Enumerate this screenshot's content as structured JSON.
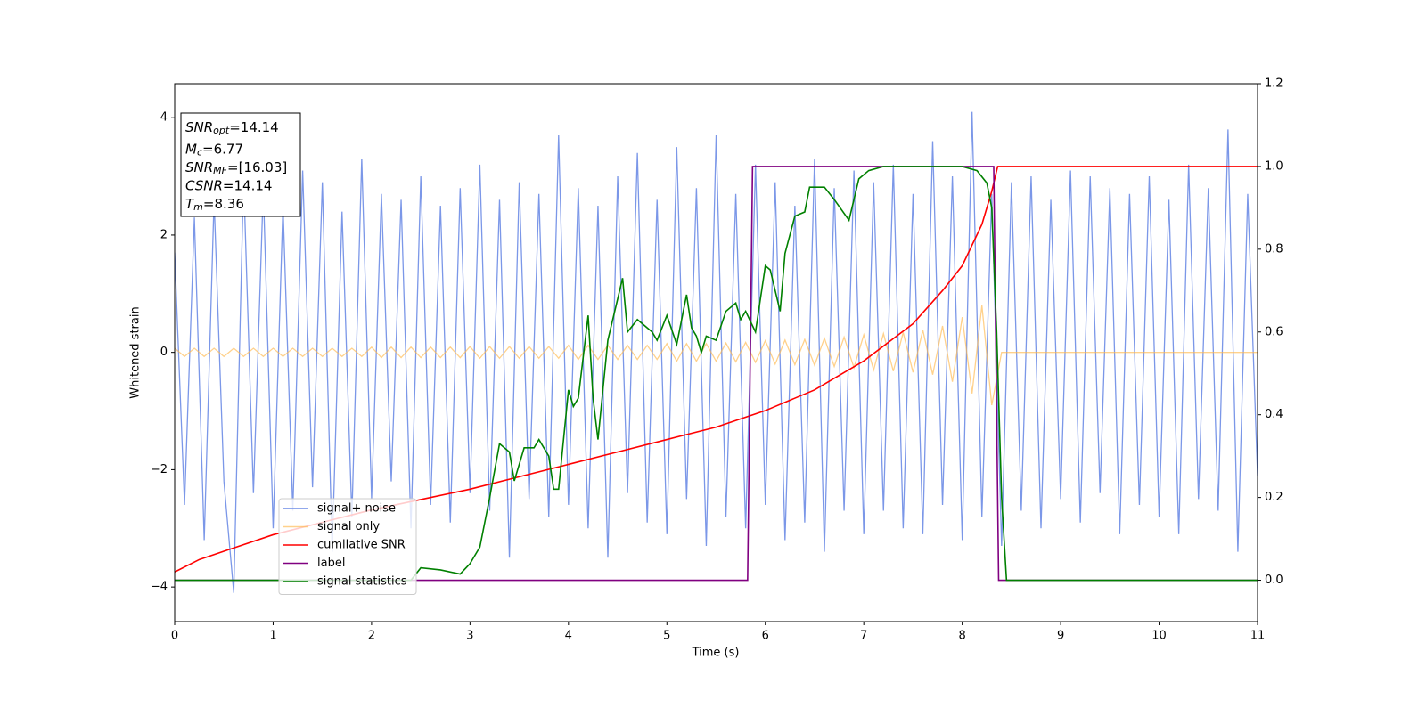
{
  "chart_data": {
    "type": "line",
    "xlabel": "Time (s)",
    "ylabel": "Whitened strain",
    "xlim": [
      0,
      11
    ],
    "ylim": [
      -4.59,
      4.58
    ],
    "y2lim": [
      -0.1,
      1.2
    ],
    "xticks": [
      0,
      1,
      2,
      3,
      4,
      5,
      6,
      7,
      8,
      9,
      10,
      11
    ],
    "yticks": [
      {
        "value": -4,
        "label": "−4"
      },
      {
        "value": -2,
        "label": "−2"
      },
      0,
      2,
      4
    ],
    "y2ticks": [
      {
        "value": 0,
        "label": "0.0"
      },
      0.2,
      0.4,
      0.6,
      0.8,
      {
        "value": 1,
        "label": "1.0"
      },
      1.2
    ],
    "legend": "lower left",
    "stats_box": [
      {
        "name": "SNR",
        "sub": "opt",
        "text": "=14.14"
      },
      {
        "name": "M",
        "sub": "c",
        "text": "=6.77"
      },
      {
        "name": "SNR",
        "sub": "MF",
        "text": "=[16.03]"
      },
      {
        "name": "CSNR",
        "text": "=14.14"
      },
      {
        "name": "T",
        "sub": "m",
        "text": "=8.36"
      }
    ],
    "x": [
      0,
      0.1,
      0.2,
      0.3,
      0.4,
      0.5,
      0.6,
      0.7,
      0.8,
      0.9,
      1,
      1.1,
      1.2,
      1.3,
      1.4,
      1.5,
      1.6,
      1.7,
      1.8,
      1.9,
      2,
      2.1,
      2.2,
      2.3,
      2.4,
      2.5,
      2.6,
      2.7,
      2.8,
      2.9,
      3,
      3.1,
      3.2,
      3.3,
      3.4,
      3.5,
      3.6,
      3.7,
      3.8,
      3.9,
      4,
      4.1,
      4.2,
      4.3,
      4.4,
      4.5,
      4.6,
      4.7,
      4.8,
      4.9,
      5,
      5.1,
      5.2,
      5.3,
      5.4,
      5.5,
      5.6,
      5.7,
      5.8,
      5.9,
      6,
      6.1,
      6.2,
      6.3,
      6.4,
      6.5,
      6.6,
      6.7,
      6.8,
      6.9,
      7,
      7.1,
      7.2,
      7.3,
      7.4,
      7.5,
      7.6,
      7.7,
      7.8,
      7.9,
      8,
      8.1,
      8.2,
      8.3,
      8.4,
      8.5,
      8.6,
      8.7,
      8.8,
      8.9,
      9,
      9.1,
      9.2,
      9.3,
      9.4,
      9.5,
      9.6,
      9.7,
      9.8,
      9.9,
      10,
      10.1,
      10.2,
      10.3,
      10.4,
      10.5,
      10.6,
      10.7,
      10.8,
      10.9,
      11
    ],
    "series": [
      {
        "name": "signal+ noise",
        "color": "#6d8ce6",
        "values": [
          1.7,
          -2.6,
          2.3,
          -3.2,
          2.6,
          -2.2,
          -4.1,
          3.0,
          -2.4,
          2.8,
          -3.0,
          2.5,
          -2.7,
          3.1,
          -2.3,
          2.9,
          -3.4,
          2.4,
          -2.8,
          3.3,
          -2.5,
          2.7,
          -2.2,
          2.6,
          -3.0,
          3.0,
          -2.6,
          2.5,
          -2.9,
          2.8,
          -2.4,
          3.2,
          -2.7,
          2.6,
          -3.5,
          2.9,
          -2.5,
          2.7,
          -2.8,
          3.7,
          -2.6,
          2.8,
          -3.0,
          2.5,
          -3.5,
          3.0,
          -2.4,
          3.4,
          -2.9,
          2.6,
          -3.1,
          3.5,
          -2.5,
          2.8,
          -3.3,
          3.7,
          -2.8,
          2.7,
          -3.0,
          3.2,
          -2.6,
          2.9,
          -3.2,
          2.5,
          -2.9,
          3.3,
          -3.4,
          2.8,
          -2.7,
          3.1,
          -3.1,
          2.9,
          -2.7,
          3.2,
          -3.0,
          2.7,
          -3.1,
          3.6,
          -2.6,
          3.0,
          -3.2,
          4.1,
          -2.8,
          2.7,
          -3.3,
          2.9,
          -2.7,
          3.0,
          -3.0,
          2.6,
          -2.5,
          3.1,
          -2.9,
          3.0,
          -2.4,
          2.8,
          -3.1,
          2.7,
          -2.6,
          3.0,
          -2.8,
          2.6,
          -3.1,
          3.2,
          -2.5,
          2.8,
          -2.7,
          3.8,
          -3.4,
          2.7,
          -2.1
        ]
      },
      {
        "name": "signal only",
        "color": "#ffb84d",
        "values": [
          0.07,
          -0.07,
          0.07,
          -0.07,
          0.07,
          -0.07,
          0.07,
          -0.07,
          0.07,
          -0.07,
          0.07,
          -0.07,
          0.07,
          -0.07,
          0.07,
          -0.07,
          0.07,
          -0.07,
          0.07,
          -0.07,
          0.09,
          -0.09,
          0.09,
          -0.09,
          0.09,
          -0.09,
          0.09,
          -0.09,
          0.09,
          -0.09,
          0.1,
          -0.1,
          0.1,
          -0.1,
          0.1,
          -0.1,
          0.1,
          -0.1,
          0.1,
          -0.1,
          0.12,
          -0.12,
          0.12,
          -0.12,
          0.12,
          -0.12,
          0.12,
          -0.12,
          0.12,
          -0.12,
          0.15,
          -0.15,
          0.15,
          -0.15,
          0.15,
          -0.15,
          0.16,
          -0.16,
          0.17,
          -0.17,
          0.2,
          -0.2,
          0.21,
          -0.21,
          0.22,
          -0.22,
          0.24,
          -0.24,
          0.26,
          -0.26,
          0.3,
          -0.3,
          0.32,
          -0.32,
          0.34,
          -0.34,
          0.38,
          -0.38,
          0.45,
          -0.5,
          0.6,
          -0.7,
          0.8,
          -0.9,
          0,
          0,
          0,
          0,
          0,
          0,
          0,
          0,
          0,
          0,
          0,
          0,
          0,
          0,
          0,
          0,
          0,
          0,
          0,
          0,
          0,
          0,
          0,
          0,
          0,
          0,
          0
        ]
      },
      {
        "name": "cumilative SNR",
        "color": "#ff0000",
        "axis": "y2",
        "x": [
          0,
          0.25,
          0.5,
          1,
          1.5,
          2,
          2.5,
          3,
          3.5,
          4,
          4.5,
          5,
          5.5,
          6,
          6.5,
          7,
          7.5,
          7.8,
          8,
          8.2,
          8.3,
          8.36,
          11
        ],
        "values": [
          0.02,
          0.05,
          0.07,
          0.11,
          0.14,
          0.17,
          0.195,
          0.22,
          0.25,
          0.28,
          0.31,
          0.34,
          0.37,
          0.41,
          0.46,
          0.53,
          0.62,
          0.7,
          0.76,
          0.86,
          0.94,
          1.0,
          1.0
        ]
      },
      {
        "name": "label",
        "color": "#800080",
        "axis": "y2",
        "x": [
          0,
          5.82,
          5.87,
          8.32,
          8.37,
          11
        ],
        "values": [
          0,
          0,
          1,
          1,
          0,
          0
        ]
      },
      {
        "name": "signal statistics",
        "color": "#008000",
        "axis": "y2",
        "x": [
          0,
          2.4,
          2.5,
          2.7,
          2.9,
          3.0,
          3.1,
          3.2,
          3.3,
          3.4,
          3.45,
          3.55,
          3.65,
          3.7,
          3.8,
          3.85,
          3.9,
          4.0,
          4.05,
          4.1,
          4.2,
          4.25,
          4.3,
          4.4,
          4.55,
          4.6,
          4.7,
          4.85,
          4.9,
          5.0,
          5.1,
          5.2,
          5.25,
          5.3,
          5.35,
          5.4,
          5.5,
          5.6,
          5.7,
          5.75,
          5.8,
          5.9,
          6.0,
          6.05,
          6.15,
          6.2,
          6.3,
          6.4,
          6.45,
          6.5,
          6.6,
          6.7,
          6.85,
          6.95,
          7.05,
          7.2,
          7.6,
          8.0,
          8.15,
          8.25,
          8.3,
          8.35,
          8.4,
          8.45,
          11
        ],
        "values": [
          0,
          0,
          0.03,
          0.025,
          0.015,
          0.04,
          0.08,
          0.2,
          0.33,
          0.31,
          0.24,
          0.32,
          0.32,
          0.34,
          0.3,
          0.22,
          0.22,
          0.46,
          0.42,
          0.44,
          0.64,
          0.44,
          0.34,
          0.58,
          0.73,
          0.6,
          0.63,
          0.6,
          0.58,
          0.64,
          0.57,
          0.69,
          0.61,
          0.59,
          0.55,
          0.59,
          0.58,
          0.65,
          0.67,
          0.63,
          0.65,
          0.6,
          0.76,
          0.75,
          0.65,
          0.79,
          0.88,
          0.89,
          0.95,
          0.95,
          0.95,
          0.92,
          0.87,
          0.97,
          0.99,
          1.0,
          1.0,
          1.0,
          0.99,
          0.96,
          0.9,
          0.6,
          0.2,
          0,
          0
        ]
      }
    ]
  }
}
